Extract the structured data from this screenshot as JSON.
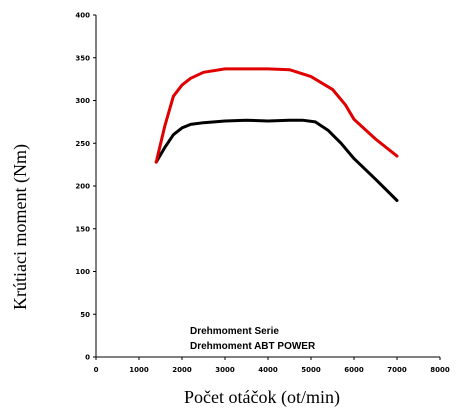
{
  "chart_data": {
    "type": "line",
    "xlabel": "Počet otáčok (ot/min)",
    "ylabel": "Krútiaci moment  (Nm)",
    "xlim": [
      0,
      8000
    ],
    "ylim": [
      0,
      400
    ],
    "x_ticks": [
      "0",
      "1000",
      "2000",
      "3000",
      "4000",
      "5000",
      "6000",
      "7000",
      "8000"
    ],
    "y_ticks": [
      "0",
      "50",
      "100",
      "150",
      "200",
      "250",
      "300",
      "350",
      "400"
    ],
    "grid": false,
    "legend_entries": [
      "Drehmoment Serie",
      "Drehmoment ABT POWER"
    ],
    "legend_placement": "bottom-center",
    "series": [
      {
        "name": "Drehmoment Serie",
        "color": "#000000",
        "x": [
          1400,
          1600,
          1800,
          2000,
          2200,
          2500,
          3000,
          3500,
          4000,
          4500,
          4800,
          5100,
          5400,
          5700,
          6000,
          6500,
          7000
        ],
        "y": [
          228,
          245,
          260,
          268,
          272,
          274,
          276,
          277,
          276,
          277,
          277,
          275,
          265,
          250,
          232,
          208,
          183
        ]
      },
      {
        "name": "Drehmoment ABT POWER",
        "color": "#e00000",
        "x": [
          1400,
          1600,
          1800,
          2000,
          2200,
          2500,
          3000,
          3500,
          4000,
          4500,
          5000,
          5500,
          5800,
          6000,
          6500,
          7000
        ],
        "y": [
          228,
          270,
          305,
          318,
          326,
          333,
          337,
          337,
          337,
          336,
          328,
          313,
          295,
          278,
          255,
          235
        ]
      }
    ]
  }
}
